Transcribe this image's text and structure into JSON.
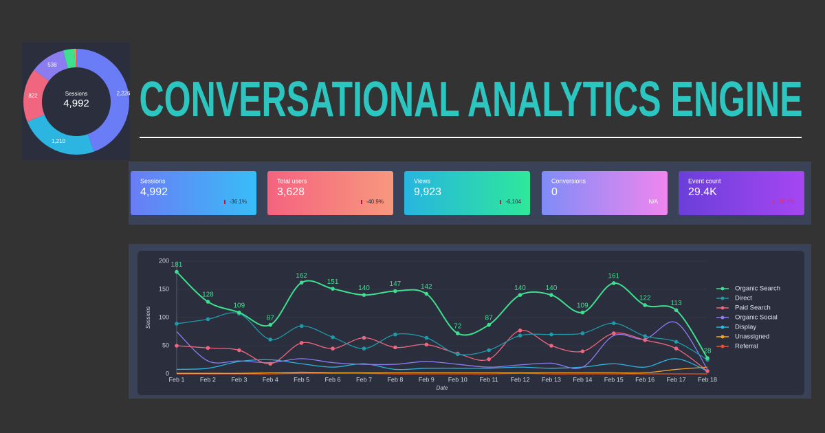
{
  "title": "CONVERSATIONAL ANALYTICS ENGINE",
  "kpis": [
    {
      "label": "Sessions",
      "value": "4,992",
      "change": "-36.1%"
    },
    {
      "label": "Total users",
      "value": "3,628",
      "change": "-40.9%"
    },
    {
      "label": "Views",
      "value": "9,923",
      "change": "-6,104"
    },
    {
      "label": "Conversions",
      "value": "0",
      "change": "N/A"
    },
    {
      "label": "Event count",
      "value": "29.4K",
      "change": "-30.9%"
    }
  ],
  "chart_data": [
    {
      "type": "donut",
      "center_label": "Sessions",
      "center_value": "4,992",
      "values": [
        2226,
        1210,
        822,
        538,
        170,
        16,
        10
      ],
      "value_labels": [
        "2,226",
        "1,210",
        "822",
        "538",
        null,
        null,
        null
      ],
      "colors": [
        "#6b7cf7",
        "#2bb5e0",
        "#f0667e",
        "#8b7cf0",
        "#3ee08f",
        "#f5c323",
        "#f0522f"
      ]
    },
    {
      "type": "line",
      "xlabel": "Date",
      "ylabel": "Sessions",
      "categories": [
        "Feb 1",
        "Feb 2",
        "Feb 3",
        "Feb 4",
        "Feb 5",
        "Feb 6",
        "Feb 7",
        "Feb 8",
        "Feb 9",
        "Feb 10",
        "Feb 11",
        "Feb 12",
        "Feb 13",
        "Feb 14",
        "Feb 15",
        "Feb 16",
        "Feb 17",
        "Feb 18"
      ],
      "ylim": [
        0,
        200
      ],
      "yticks": [
        0,
        50,
        100,
        150,
        200
      ],
      "grid": true,
      "series": [
        {
          "name": "Organic Search",
          "color": "#3ee08f",
          "markers": true,
          "data_labels": true,
          "values": [
            181,
            128,
            109,
            87,
            162,
            151,
            140,
            147,
            142,
            72,
            87,
            140,
            140,
            109,
            161,
            122,
            113,
            28
          ]
        },
        {
          "name": "Direct",
          "color": "#1f9aa8",
          "markers": true,
          "values": [
            89,
            97,
            107,
            61,
            85,
            65,
            45,
            70,
            64,
            35,
            42,
            68,
            70,
            72,
            90,
            67,
            57,
            25
          ]
        },
        {
          "name": "Paid Search",
          "color": "#f0667e",
          "markers": true,
          "values": [
            50,
            46,
            42,
            18,
            55,
            45,
            64,
            47,
            52,
            36,
            26,
            77,
            50,
            40,
            72,
            60,
            45,
            5
          ]
        },
        {
          "name": "Organic Social",
          "color": "#8b7cf0",
          "values": [
            75,
            23,
            23,
            20,
            27,
            20,
            17,
            17,
            22,
            17,
            12,
            16,
            19,
            12,
            68,
            62,
            91,
            8
          ]
        },
        {
          "name": "Display",
          "color": "#2bb5e0",
          "values": [
            8,
            10,
            22,
            25,
            18,
            12,
            18,
            8,
            10,
            10,
            10,
            12,
            10,
            12,
            18,
            12,
            27,
            5
          ]
        },
        {
          "name": "Unassigned",
          "color": "#f5a623",
          "values": [
            1,
            1,
            1,
            2,
            3,
            2,
            2,
            2,
            2,
            2,
            2,
            2,
            2,
            2,
            2,
            2,
            8,
            12
          ]
        },
        {
          "name": "Referral",
          "color": "#f0522f",
          "values": [
            0,
            0,
            0,
            0,
            1,
            1,
            1,
            0,
            0,
            0,
            0,
            1,
            0,
            0,
            0,
            0,
            0,
            0
          ]
        }
      ]
    }
  ]
}
